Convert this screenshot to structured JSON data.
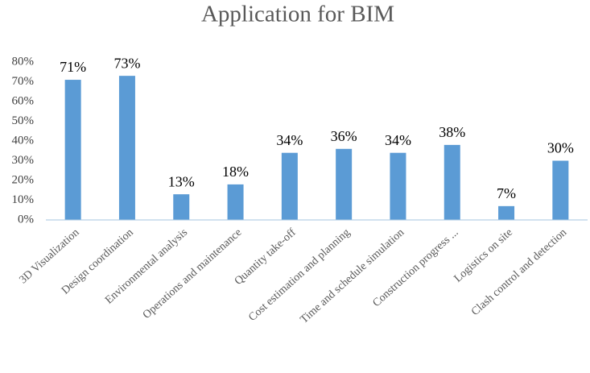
{
  "chart_data": {
    "type": "bar",
    "title": "Application for BIM",
    "categories": [
      "3D Visualization",
      "Design coordination",
      "Environmental analysis",
      "Operations and maintenance",
      "Quantity take-off",
      "Cost estimation and planning",
      "Time and schedule simulation",
      "Construction progress ...",
      "Logistics on site",
      "Clash control and detection"
    ],
    "values": [
      71,
      73,
      13,
      18,
      34,
      36,
      34,
      38,
      7,
      30
    ],
    "value_labels": [
      "71%",
      "73%",
      "13%",
      "18%",
      "34%",
      "36%",
      "34%",
      "38%",
      "7%",
      "30%"
    ],
    "color": "#5b9bd5",
    "ylim": [
      0,
      80
    ],
    "yticks": [
      {
        "value": 0,
        "label": "0%"
      },
      {
        "value": 10,
        "label": "10%"
      },
      {
        "value": 20,
        "label": "20%"
      },
      {
        "value": 30,
        "label": "30%"
      },
      {
        "value": 40,
        "label": "40%"
      },
      {
        "value": 50,
        "label": "50%"
      },
      {
        "value": 60,
        "label": "60%"
      },
      {
        "value": 70,
        "label": "70%"
      },
      {
        "value": 80,
        "label": "80%"
      }
    ],
    "grid": false
  }
}
